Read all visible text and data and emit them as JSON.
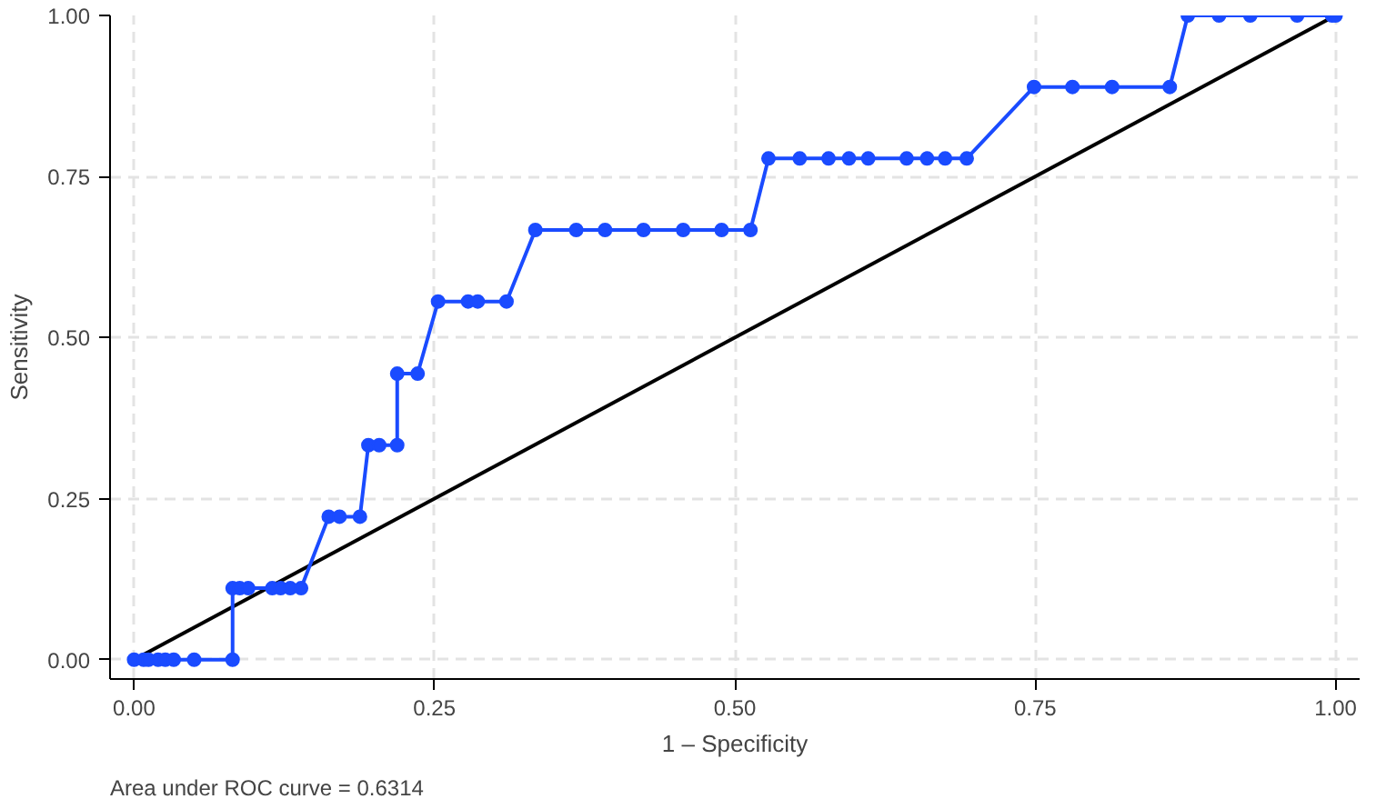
{
  "chart_data": {
    "type": "line",
    "xlabel": "1 – Specificity",
    "ylabel": "Sensitivity",
    "annotations": [
      "Area under ROC curve = 0.6314"
    ],
    "xlim": [
      -0.02,
      1.02
    ],
    "ylim": [
      -0.03,
      1.0
    ],
    "xticks": [
      {
        "value": 0,
        "label": "0.00"
      },
      {
        "value": 0.25,
        "label": "0.25"
      },
      {
        "value": 0.5,
        "label": "0.50"
      },
      {
        "value": 0.75,
        "label": "0.75"
      },
      {
        "value": 1,
        "label": "1.00"
      }
    ],
    "yticks": [
      {
        "value": 0,
        "label": "0.00"
      },
      {
        "value": 0.25,
        "label": "0.25"
      },
      {
        "value": 0.5,
        "label": "0.50"
      },
      {
        "value": 0.75,
        "label": "0.75"
      },
      {
        "value": 1,
        "label": "1.00"
      }
    ],
    "grid": true,
    "marker": "circle",
    "line_style": "solid",
    "series": [
      {
        "color": "#1a4bff",
        "x": [
          0,
          0.008,
          0.012,
          0.02,
          0.026,
          0.033,
          0.05,
          0.082,
          0.082,
          0.088,
          0.095,
          0.115,
          0.122,
          0.13,
          0.139,
          0.162,
          0.171,
          0.188,
          0.195,
          0.204,
          0.219,
          0.219,
          0.236,
          0.253,
          0.278,
          0.286,
          0.31,
          0.334,
          0.368,
          0.392,
          0.424,
          0.457,
          0.489,
          0.513,
          0.528,
          0.554,
          0.578,
          0.595,
          0.611,
          0.643,
          0.66,
          0.675,
          0.693,
          0.749,
          0.781,
          0.814,
          0.862,
          0.877,
          0.903,
          0.929,
          0.968,
          0.997,
          1.0
        ],
        "values": [
          0,
          0,
          0,
          0,
          0,
          0,
          0,
          0,
          0.111,
          0.111,
          0.111,
          0.111,
          0.111,
          0.111,
          0.111,
          0.222,
          0.222,
          0.222,
          0.333,
          0.333,
          0.333,
          0.444,
          0.444,
          0.556,
          0.556,
          0.556,
          0.556,
          0.667,
          0.667,
          0.667,
          0.667,
          0.667,
          0.667,
          0.667,
          0.778,
          0.778,
          0.778,
          0.778,
          0.778,
          0.778,
          0.778,
          0.778,
          0.778,
          0.889,
          0.889,
          0.889,
          0.889,
          1,
          1,
          1,
          1,
          1,
          1
        ]
      },
      {
        "color": "#000000",
        "x": [
          0,
          1
        ],
        "values": [
          0,
          1
        ],
        "marker": "none"
      }
    ]
  }
}
